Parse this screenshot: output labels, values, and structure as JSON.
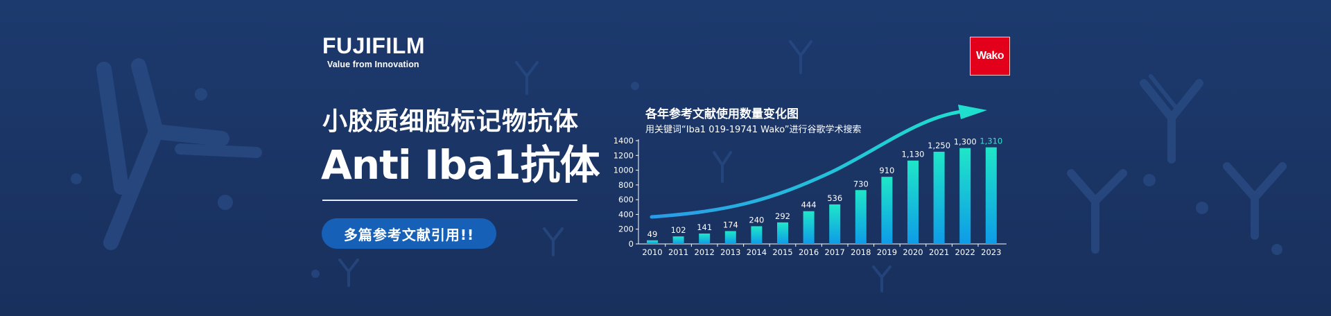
{
  "brand": {
    "logo_text": "FUJIFILM",
    "tagline": "Value from Innovation",
    "partner_logo": "Wako"
  },
  "hero": {
    "title_line1": "小胶质细胞标记物抗体",
    "title_line2": "Anti Iba1抗体",
    "badge": "多篇参考文献引用!!"
  },
  "colors": {
    "background": "#1b3668",
    "bar_top": "#1fe6c8",
    "bar_bottom": "#0e9be8",
    "accent_red": "#e2001a",
    "badge_blue": "#1760b8"
  },
  "chart_data": {
    "type": "bar",
    "title": "各年参考文献使用数量变化图",
    "subtitle": "用关键词“Iba1 019-19741 Wako”进行谷歌学术搜索",
    "categories": [
      "2010",
      "2011",
      "2012",
      "2013",
      "2014",
      "2015",
      "2016",
      "2017",
      "2018",
      "2019",
      "2020",
      "2021",
      "2022",
      "2023"
    ],
    "values": [
      49,
      102,
      141,
      174,
      240,
      292,
      444,
      536,
      730,
      910,
      1130,
      1250,
      1300,
      1310
    ],
    "value_labels": [
      "49",
      "102",
      "141",
      "174",
      "240",
      "292",
      "444",
      "536",
      "730",
      "910",
      "1,130",
      "1,250",
      "1,300",
      "1,310"
    ],
    "y_ticks": [
      "0",
      "200",
      "400",
      "600",
      "800",
      "1000",
      "1200",
      "1400"
    ],
    "ylim": [
      0,
      1400
    ],
    "highlight_index": 13,
    "trend_arrow": true,
    "grid": false,
    "legend": "none"
  }
}
